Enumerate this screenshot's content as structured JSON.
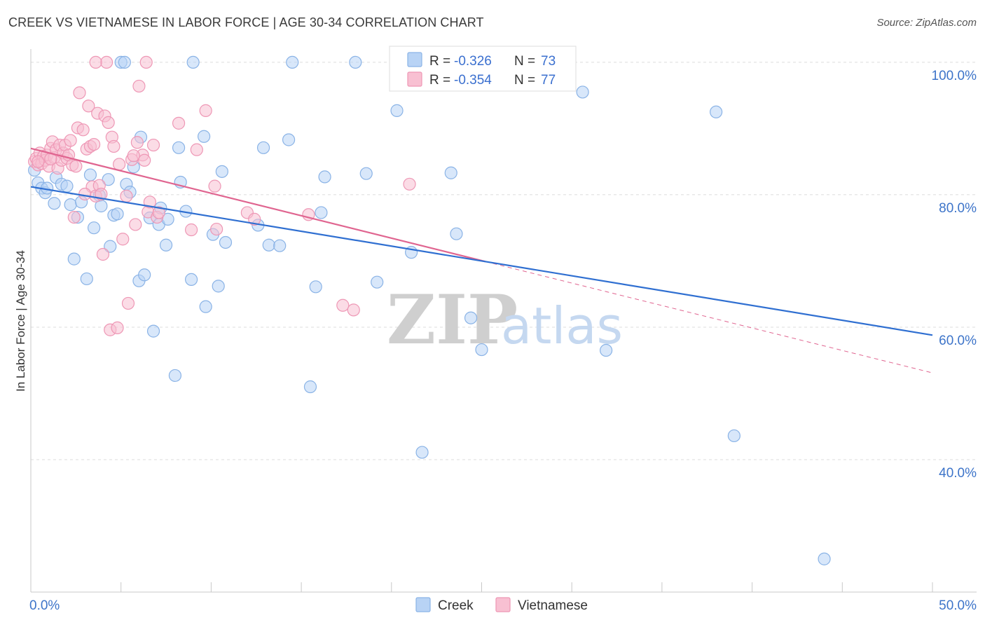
{
  "title": "CREEK VS VIETNAMESE IN LABOR FORCE | AGE 30-34 CORRELATION CHART",
  "source": "Source: ZipAtlas.com",
  "watermark": {
    "zip": "ZIP",
    "atlas": "atlas"
  },
  "colors": {
    "creek_fill": "#b8d3f5",
    "creek_stroke": "#8ab3e6",
    "creek_line": "#2f6fd1",
    "viet_fill": "#f8c0d2",
    "viet_stroke": "#ee97b5",
    "viet_line": "#e06590",
    "tick_text": "#3d74c9",
    "grid": "#dcdcdc"
  },
  "legend": {
    "creek": {
      "r_label": "R =",
      "r_value": "-0.326",
      "n_label": "N =",
      "n_value": "73"
    },
    "viet": {
      "r_label": "R =",
      "r_value": "-0.354",
      "n_label": "N =",
      "n_value": "77"
    }
  },
  "chart_data": {
    "type": "scatter",
    "xlabel": "",
    "ylabel": "In Labor Force | Age 30-34",
    "xlim": [
      0,
      50
    ],
    "ylim": [
      20,
      102
    ],
    "x_tick_labels": {
      "left": "0.0%",
      "right": "50.0%"
    },
    "y_ticks": [
      {
        "value": 100,
        "label": "100.0%"
      },
      {
        "value": 80,
        "label": "80.0%"
      },
      {
        "value": 60,
        "label": "60.0%"
      },
      {
        "value": 40,
        "label": "40.0%"
      }
    ],
    "series": [
      {
        "name": "Creek",
        "trend": {
          "x0": 0,
          "y0": 81.2,
          "x1": 50,
          "y1": 58.8,
          "solid_until": 50
        },
        "points": [
          [
            0.2,
            83.7
          ],
          [
            0.4,
            81.8
          ],
          [
            0.6,
            81.0
          ],
          [
            0.8,
            80.3
          ],
          [
            0.9,
            81.0
          ],
          [
            1.3,
            78.7
          ],
          [
            1.4,
            82.6
          ],
          [
            1.7,
            81.6
          ],
          [
            2.0,
            81.3
          ],
          [
            2.2,
            78.5
          ],
          [
            2.4,
            70.3
          ],
          [
            2.6,
            76.6
          ],
          [
            2.8,
            78.9
          ],
          [
            3.1,
            67.3
          ],
          [
            3.3,
            83.0
          ],
          [
            3.5,
            75.0
          ],
          [
            3.8,
            79.9
          ],
          [
            3.9,
            78.3
          ],
          [
            4.3,
            82.3
          ],
          [
            4.4,
            72.2
          ],
          [
            4.6,
            76.9
          ],
          [
            4.8,
            77.1
          ],
          [
            5.0,
            100.0
          ],
          [
            5.2,
            100.0
          ],
          [
            5.3,
            81.6
          ],
          [
            5.5,
            80.4
          ],
          [
            5.7,
            84.2
          ],
          [
            6.0,
            67.0
          ],
          [
            6.1,
            88.7
          ],
          [
            6.3,
            67.9
          ],
          [
            6.6,
            76.5
          ],
          [
            6.8,
            59.4
          ],
          [
            7.1,
            75.5
          ],
          [
            7.2,
            78.0
          ],
          [
            7.5,
            72.4
          ],
          [
            7.6,
            76.3
          ],
          [
            8.0,
            52.7
          ],
          [
            8.2,
            87.1
          ],
          [
            8.3,
            81.9
          ],
          [
            8.6,
            77.5
          ],
          [
            8.9,
            67.2
          ],
          [
            9.0,
            100.0
          ],
          [
            9.6,
            88.8
          ],
          [
            9.7,
            63.1
          ],
          [
            10.1,
            74.0
          ],
          [
            10.4,
            66.2
          ],
          [
            10.6,
            83.5
          ],
          [
            10.8,
            72.8
          ],
          [
            12.6,
            75.4
          ],
          [
            12.9,
            87.1
          ],
          [
            13.2,
            72.4
          ],
          [
            13.8,
            72.3
          ],
          [
            14.3,
            88.3
          ],
          [
            14.5,
            100.0
          ],
          [
            15.5,
            51.0
          ],
          [
            15.8,
            66.1
          ],
          [
            16.1,
            77.3
          ],
          [
            16.3,
            82.7
          ],
          [
            18.0,
            100.0
          ],
          [
            18.6,
            83.2
          ],
          [
            19.2,
            66.8
          ],
          [
            20.3,
            92.7
          ],
          [
            21.1,
            71.3
          ],
          [
            21.7,
            41.1
          ],
          [
            23.3,
            83.3
          ],
          [
            23.6,
            74.1
          ],
          [
            24.4,
            61.4
          ],
          [
            25.0,
            56.6
          ],
          [
            30.6,
            95.5
          ],
          [
            31.9,
            56.5
          ],
          [
            38.0,
            92.5
          ],
          [
            39.0,
            43.6
          ],
          [
            44.0,
            25.0
          ]
        ]
      },
      {
        "name": "Vietnamese",
        "trend": {
          "x0": 0,
          "y0": 87.0,
          "x1": 50,
          "y1": 53.1,
          "solid_until": 25.2
        },
        "points": [
          [
            0.2,
            85.0
          ],
          [
            0.3,
            85.5
          ],
          [
            0.4,
            84.5
          ],
          [
            0.5,
            86.3
          ],
          [
            0.6,
            84.7
          ],
          [
            0.7,
            85.8
          ],
          [
            0.8,
            85.2
          ],
          [
            0.9,
            86.0
          ],
          [
            1.0,
            84.3
          ],
          [
            1.1,
            87.0
          ],
          [
            1.2,
            88.0
          ],
          [
            1.3,
            85.6
          ],
          [
            1.4,
            86.8
          ],
          [
            1.5,
            84.0
          ],
          [
            1.6,
            87.5
          ],
          [
            1.7,
            85.2
          ],
          [
            1.8,
            86.3
          ],
          [
            1.9,
            87.5
          ],
          [
            2.0,
            85.5
          ],
          [
            2.1,
            86.0
          ],
          [
            2.2,
            88.2
          ],
          [
            2.3,
            84.5
          ],
          [
            2.4,
            76.6
          ],
          [
            2.6,
            90.1
          ],
          [
            2.7,
            95.4
          ],
          [
            2.9,
            89.8
          ],
          [
            3.1,
            86.9
          ],
          [
            3.2,
            93.4
          ],
          [
            3.3,
            87.3
          ],
          [
            3.4,
            81.2
          ],
          [
            3.5,
            87.6
          ],
          [
            3.6,
            79.8
          ],
          [
            3.7,
            92.3
          ],
          [
            3.8,
            81.4
          ],
          [
            3.9,
            80.1
          ],
          [
            4.0,
            71.0
          ],
          [
            4.1,
            91.9
          ],
          [
            4.3,
            90.9
          ],
          [
            4.4,
            59.6
          ],
          [
            4.5,
            88.7
          ],
          [
            4.6,
            87.3
          ],
          [
            4.8,
            59.9
          ],
          [
            4.9,
            84.6
          ],
          [
            5.1,
            73.3
          ],
          [
            5.3,
            79.8
          ],
          [
            5.4,
            63.6
          ],
          [
            5.6,
            85.3
          ],
          [
            5.8,
            75.5
          ],
          [
            5.9,
            87.9
          ],
          [
            6.0,
            96.4
          ],
          [
            6.2,
            86.0
          ],
          [
            6.3,
            85.2
          ],
          [
            6.5,
            77.4
          ],
          [
            6.6,
            78.9
          ],
          [
            6.8,
            87.5
          ],
          [
            7.0,
            76.6
          ],
          [
            4.2,
            100.0
          ],
          [
            6.4,
            100.0
          ],
          [
            3.6,
            100.0
          ],
          [
            7.1,
            77.3
          ],
          [
            8.2,
            90.8
          ],
          [
            8.9,
            74.7
          ],
          [
            9.2,
            86.8
          ],
          [
            9.7,
            92.7
          ],
          [
            10.2,
            81.3
          ],
          [
            12.0,
            77.3
          ],
          [
            12.4,
            76.3
          ],
          [
            15.4,
            77.0
          ],
          [
            17.3,
            63.3
          ],
          [
            17.9,
            62.6
          ],
          [
            21.0,
            81.6
          ],
          [
            10.3,
            74.8
          ],
          [
            5.7,
            85.9
          ],
          [
            2.5,
            84.3
          ],
          [
            1.1,
            85.4
          ],
          [
            0.4,
            85.0
          ],
          [
            3.0,
            80.1
          ]
        ]
      }
    ]
  },
  "bottom_legend": {
    "creek": "Creek",
    "viet": "Vietnamese"
  }
}
